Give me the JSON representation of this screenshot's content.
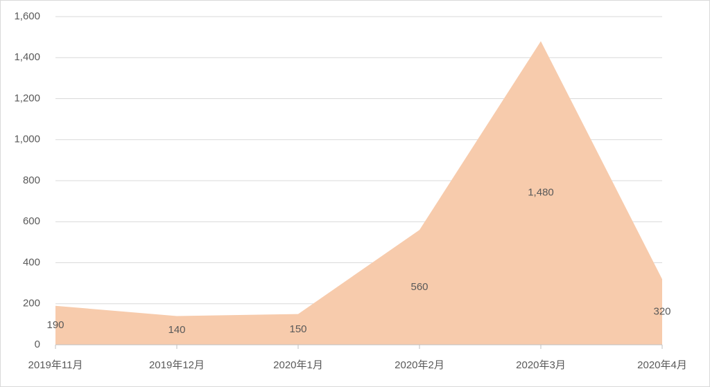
{
  "chart_data": {
    "type": "area",
    "categories": [
      "2019年11月",
      "2019年12月",
      "2020年1月",
      "2020年2月",
      "2020年3月",
      "2020年4月"
    ],
    "values": [
      190,
      140,
      150,
      560,
      1480,
      320
    ],
    "value_labels": [
      "190",
      "140",
      "150",
      "560",
      "1,480",
      "320"
    ],
    "color": "#f7cbac",
    "ylim": [
      0,
      1600
    ],
    "yticks": [
      0,
      200,
      400,
      600,
      800,
      {
        "value": 1000,
        "label": "1,000"
      },
      {
        "value": 1200,
        "label": "1,200"
      },
      {
        "value": 1400,
        "label": "1,400"
      },
      {
        "value": 1600,
        "label": "1,600"
      }
    ],
    "grid": true
  }
}
